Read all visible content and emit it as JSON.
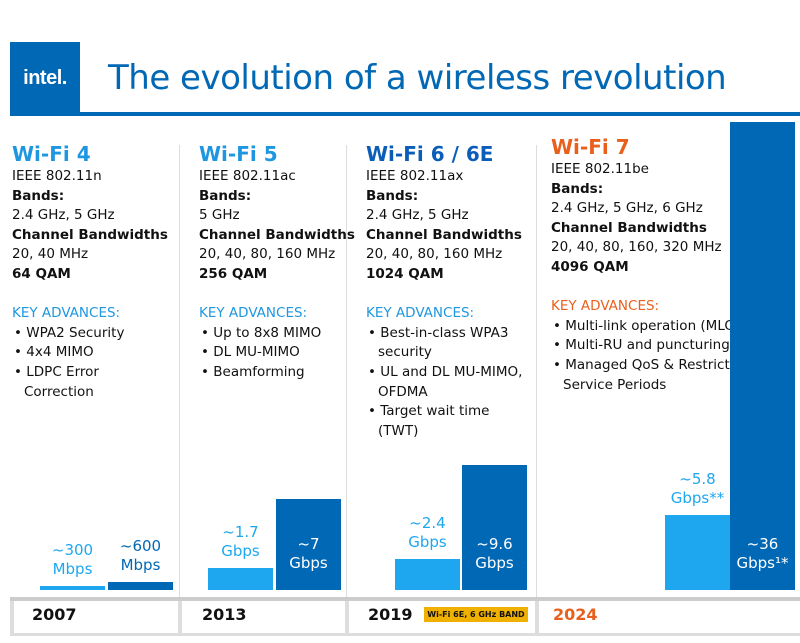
{
  "header": {
    "logo": "intel.",
    "title": "The evolution of a wireless revolution"
  },
  "colors": {
    "brand": "#0068b5",
    "light_bar": "#1ea7ef",
    "dark_bar": "#0068b5",
    "wifi7": "#e8601c",
    "badge": "#f0b000"
  },
  "columns": [
    {
      "name": "Wi-Fi 4",
      "standard": "IEEE 802.11n",
      "bands_label": "Bands:",
      "bands": "2.4 GHz, 5 GHz",
      "bw_label": "Channel Bandwidths",
      "bw": "20, 40 MHz",
      "qam": "64 QAM",
      "key_label": "KEY ADVANCES:",
      "advances": [
        "WPA2 Security",
        "4x4 MIMO",
        "LDPC Error Correction"
      ],
      "year": "2007"
    },
    {
      "name": "Wi-Fi 5",
      "standard": "IEEE 802.11ac",
      "bands_label": "Bands:",
      "bands": "5 GHz",
      "bw_label": "Channel Bandwidths",
      "bw": "20, 40, 80, 160 MHz",
      "qam": "256 QAM",
      "key_label": "KEY ADVANCES:",
      "advances": [
        "Up to 8x8 MIMO",
        "DL MU-MIMO",
        "Beamforming"
      ],
      "year": "2013"
    },
    {
      "name": "Wi-Fi 6 / 6E",
      "standard": "IEEE 802.11ax",
      "bands_label": "Bands:",
      "bands": "2.4 GHz, 5 GHz",
      "bw_label": "Channel Bandwidths",
      "bw": "20, 40, 80, 160 MHz",
      "qam": "1024 QAM",
      "key_label": "KEY ADVANCES:",
      "advances": [
        "Best-in-class WPA3 security",
        "UL and DL MU-MIMO, OFDMA",
        "Target wait time (TWT)"
      ],
      "year": "2019",
      "badge": "Wi-Fi 6E, 6 GHz BAND"
    },
    {
      "name": "Wi-Fi 7",
      "standard": "IEEE 802.11be",
      "bands_label": "Bands:",
      "bands": "2.4 GHz, 5 GHz, 6 GHz",
      "bw_label": "Channel Bandwidths",
      "bw": "20, 40, 80, 160, 320 MHz",
      "qam": "4096 QAM",
      "key_label": "KEY ADVANCES:",
      "advances": [
        "Multi-link operation (MLO)",
        "Multi-RU and puncturing",
        "Managed QoS & Restricted Service Periods"
      ],
      "year": "2024"
    }
  ],
  "chart_data": {
    "type": "bar",
    "categories": [
      "2007",
      "2013",
      "2019",
      "2024"
    ],
    "unit": "Gbps",
    "series": [
      {
        "values": [
          0.3,
          1.7,
          2.4,
          5.8
        ],
        "labels": [
          "~300 Mbps",
          "~1.7 Gbps",
          "~2.4 Gbps",
          "~5.8 Gbps**"
        ]
      },
      {
        "values": [
          0.6,
          7,
          9.6,
          36
        ],
        "labels": [
          "~600 Mbps",
          "~7 Gbps",
          "~9.6 Gbps",
          "~36 Gbps¹*"
        ]
      }
    ]
  }
}
